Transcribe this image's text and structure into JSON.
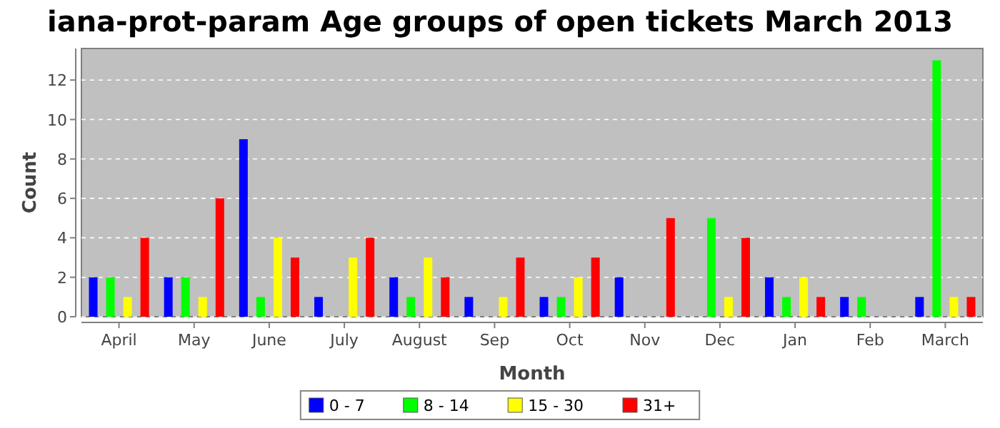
{
  "chart_data": {
    "type": "bar",
    "title": "iana-prot-param Age groups of open tickets March 2013",
    "xlabel": "Month",
    "ylabel": "Count",
    "categories": [
      "April",
      "May",
      "June",
      "July",
      "August",
      "Sep",
      "Oct",
      "Nov",
      "Dec",
      "Jan",
      "Feb",
      "March"
    ],
    "series": [
      {
        "name": "0 - 7",
        "color": "#0000ff",
        "values": [
          2,
          2,
          9,
          1,
          2,
          1,
          1,
          2,
          0,
          2,
          1,
          1
        ]
      },
      {
        "name": "8 - 14",
        "color": "#00ff00",
        "values": [
          2,
          2,
          1,
          0,
          1,
          0,
          1,
          0,
          5,
          1,
          1,
          13
        ]
      },
      {
        "name": "15 - 30",
        "color": "#ffff00",
        "values": [
          1,
          1,
          4,
          3,
          3,
          1,
          2,
          0,
          1,
          2,
          0,
          1
        ]
      },
      {
        "name": "31+",
        "color": "#ff0000",
        "values": [
          4,
          6,
          3,
          4,
          2,
          3,
          3,
          5,
          4,
          1,
          0,
          1
        ]
      }
    ],
    "ylim": [
      0,
      13.6
    ],
    "yticks": [
      0,
      2,
      4,
      6,
      8,
      10,
      12
    ],
    "grid": "y",
    "legend": "bottom"
  }
}
